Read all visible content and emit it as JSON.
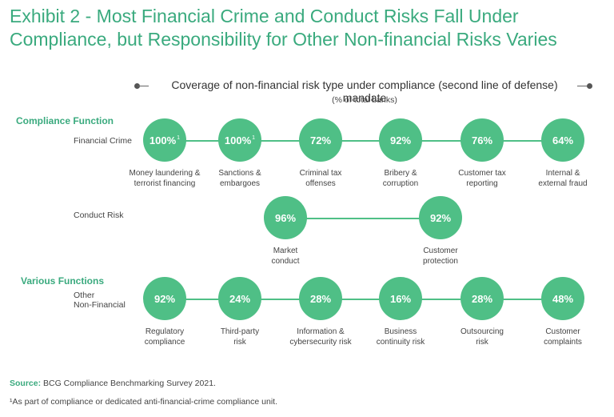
{
  "title": "Exhibit 2 - Most Financial Crime and Conduct Risks Fall Under Compliance, but Responsibility for Other Non-financial Risks Varies",
  "legend": {
    "text": "Coverage of non-financial risk type under compliance (second line of defense) mandate",
    "subtext": "(% of total banks)"
  },
  "sections": {
    "compliance": "Compliance Function",
    "various": "Various Functions"
  },
  "rows": {
    "financial_crime": "Financial Crime",
    "conduct_risk": "Conduct Risk",
    "other_nonfinancial_1": "Other",
    "other_nonfinancial_2": "Non-Financial"
  },
  "footer": {
    "source_label": "Source:",
    "source_text": " BCG Compliance Benchmarking Survey 2021.",
    "footnote": "¹As part of compliance or dedicated anti-financial-crime compliance unit."
  },
  "colors": {
    "accent": "#4fbf86",
    "title": "#3aaa7e"
  },
  "chart_data": {
    "type": "bubble-row",
    "unit": "% of total banks",
    "groups": [
      {
        "section": "Compliance Function",
        "row": "Financial Crime",
        "items": [
          {
            "label": "Money laundering & terrorist financing",
            "line1": "Money laundering &",
            "line2": "terrorist financing",
            "value": 100,
            "display": "100%",
            "footnote": "1"
          },
          {
            "label": "Sanctions & embargoes",
            "line1": "Sanctions &",
            "line2": "embargoes",
            "value": 100,
            "display": "100%",
            "footnote": "1"
          },
          {
            "label": "Criminal tax offenses",
            "line1": "Criminal tax",
            "line2": "offenses",
            "value": 72,
            "display": "72%"
          },
          {
            "label": "Bribery & corruption",
            "line1": "Bribery &",
            "line2": "corruption",
            "value": 92,
            "display": "92%"
          },
          {
            "label": "Customer tax reporting",
            "line1": "Customer tax",
            "line2": "reporting",
            "value": 76,
            "display": "76%"
          },
          {
            "label": "Internal & external fraud",
            "line1": "Internal &",
            "line2": "external fraud",
            "value": 64,
            "display": "64%"
          }
        ]
      },
      {
        "section": "Compliance Function",
        "row": "Conduct Risk",
        "items": [
          {
            "label": "Market conduct",
            "line1": "Market",
            "line2": "conduct",
            "value": 96,
            "display": "96%"
          },
          {
            "label": "Customer protection",
            "line1": "Customer",
            "line2": "protection",
            "value": 92,
            "display": "92%"
          }
        ]
      },
      {
        "section": "Various Functions",
        "row": "Other Non-Financial",
        "items": [
          {
            "label": "Regulatory compliance",
            "line1": "Regulatory",
            "line2": "compliance",
            "value": 92,
            "display": "92%"
          },
          {
            "label": "Third-party risk",
            "line1": "Third-party",
            "line2": "risk",
            "value": 24,
            "display": "24%"
          },
          {
            "label": "Information & cybersecurity risk",
            "line1": "Information &",
            "line2": "cybersecurity risk",
            "value": 28,
            "display": "28%"
          },
          {
            "label": "Business continuity risk",
            "line1": "Business",
            "line2": "continuity risk",
            "value": 16,
            "display": "16%"
          },
          {
            "label": "Outsourcing risk",
            "line1": "Outsourcing",
            "line2": "risk",
            "value": 28,
            "display": "28%"
          },
          {
            "label": "Customer complaints",
            "line1": "Customer",
            "line2": "complaints",
            "value": 48,
            "display": "48%"
          }
        ]
      }
    ]
  }
}
